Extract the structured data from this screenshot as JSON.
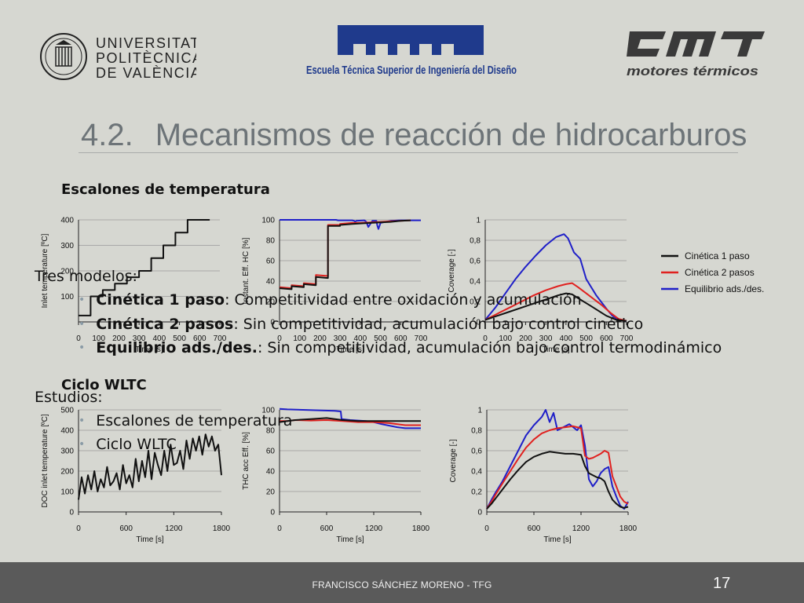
{
  "header": {
    "upv_lines": [
      "UNIVERSITAT",
      "POLITÈCNICA",
      "DE VALÈNCIA"
    ],
    "etsid_name": "Escuela Técnica Superior de Ingeniería del Diseño",
    "cmt_name": "motores térmicos"
  },
  "slide": {
    "title_number": "4.2.",
    "title_text": "Mecanismos de reacción de hidrocarburos",
    "section_1": "Escalones de temperatura",
    "section_2": "Ciclo WLTC"
  },
  "overlay": {
    "models_heading": "Tres modelos:",
    "bullets": [
      {
        "bold": "Cinética 1 paso",
        "rest": ": Competitividad entre oxidación y acumulación"
      },
      {
        "bold": "Cinética 2 pasos",
        "rest": ": Sin competitividad, acumulación bajo control cinético"
      },
      {
        "bold": "Equilibrio ads./des.",
        "rest": ":  Sin competitividad, acumulación bajo control termodinámico"
      }
    ],
    "studies_heading": "Estudios:",
    "studies": [
      "Escalones de temperatura",
      "Ciclo WLTC"
    ]
  },
  "legend": [
    "Cinética 1 paso",
    "Cinética 2 pasos",
    "Equilibrio ads./des."
  ],
  "colors": {
    "black": "#111111",
    "red": "#e0211f",
    "blue": "#1f1fc8",
    "dark_red": "#6e1010",
    "footer": "#5a5a5a",
    "background": "#d6d7d1"
  },
  "footer": {
    "text": "FRANCISCO SÁNCHEZ MORENO - TFG",
    "page": "17"
  },
  "chart_data": [
    {
      "type": "line",
      "id": "steps_inlet_temperature",
      "xlabel": "Time [s]",
      "ylabel": "Inlet temperature [ºC]",
      "xlim": [
        0,
        700
      ],
      "ylim": [
        0,
        400
      ],
      "xticks": [
        0,
        100,
        200,
        300,
        400,
        500,
        600,
        700
      ],
      "yticks": [
        100,
        200,
        300,
        400
      ],
      "series": [
        {
          "color": "#111111",
          "x": [
            0,
            60,
            60,
            120,
            120,
            180,
            180,
            240,
            240,
            300,
            300,
            360,
            360,
            420,
            420,
            480,
            480,
            540,
            540,
            600,
            600,
            650
          ],
          "y": [
            25,
            25,
            100,
            100,
            125,
            125,
            150,
            150,
            175,
            175,
            200,
            200,
            250,
            250,
            300,
            300,
            350,
            350,
            400,
            400,
            400,
            400
          ]
        }
      ]
    },
    {
      "type": "line",
      "id": "steps_instant_eff_hc",
      "xlabel": "Time [s]",
      "ylabel": "Instant. Eff. HC [%]",
      "xlim": [
        0,
        700
      ],
      "ylim": [
        0,
        100
      ],
      "xticks": [
        0,
        100,
        200,
        300,
        400,
        500,
        600,
        700
      ],
      "yticks": [
        0,
        20,
        40,
        60,
        80,
        100
      ],
      "series": [
        {
          "name": "Equilibrio ads./des.",
          "color": "#1f1fc8",
          "x": [
            0,
            280,
            290,
            300,
            360,
            370,
            375,
            380,
            420,
            430,
            440,
            450,
            460,
            480,
            485,
            490,
            500,
            550,
            600,
            700
          ],
          "y": [
            100,
            100,
            99.5,
            99.5,
            99.5,
            99,
            98,
            99,
            99.5,
            98,
            93,
            96,
            99,
            99,
            94,
            91,
            97,
            99,
            99.5,
            99.5
          ]
        },
        {
          "name": "Cinética 2 pasos",
          "color": "#e0211f",
          "x": [
            0,
            60,
            60,
            120,
            120,
            180,
            180,
            240,
            240,
            300,
            300,
            360,
            400,
            450,
            500,
            550,
            600,
            650
          ],
          "y": [
            34,
            33,
            36,
            35,
            38,
            37,
            46,
            45,
            95,
            95,
            96,
            97,
            97,
            97.5,
            98,
            98.5,
            99,
            99.5
          ]
        },
        {
          "name": "Cinética 1 paso",
          "color": "#111111",
          "x": [
            0,
            60,
            60,
            120,
            120,
            180,
            180,
            240,
            240,
            300,
            300,
            360,
            400,
            450,
            500,
            550,
            600,
            650
          ],
          "y": [
            33,
            32,
            35,
            34,
            37,
            36,
            44,
            43,
            94,
            94,
            95,
            96,
            96.5,
            97,
            97.5,
            98,
            99,
            99.5
          ]
        }
      ]
    },
    {
      "type": "line",
      "id": "steps_coverage",
      "xlabel": "Time [s]",
      "ylabel": "Coverage [-]",
      "xlim": [
        0,
        700
      ],
      "ylim": [
        0,
        1
      ],
      "xticks": [
        0,
        100,
        200,
        300,
        400,
        500,
        600,
        700
      ],
      "yticks": [
        0,
        0.2,
        0.4,
        0.6,
        0.8,
        1
      ],
      "series": [
        {
          "name": "Equilibrio ads./des.",
          "color": "#1f1fc8",
          "x": [
            0,
            50,
            100,
            150,
            200,
            250,
            300,
            350,
            390,
            410,
            440,
            470,
            500,
            550,
            600,
            630,
            660,
            700
          ],
          "y": [
            0.02,
            0.14,
            0.28,
            0.42,
            0.54,
            0.65,
            0.75,
            0.83,
            0.86,
            0.82,
            0.68,
            0.62,
            0.42,
            0.26,
            0.13,
            0.06,
            0.02,
            0.01
          ]
        },
        {
          "name": "Cinética 2 pasos",
          "color": "#e0211f",
          "x": [
            0,
            60,
            120,
            180,
            240,
            300,
            360,
            400,
            430,
            460,
            500,
            540,
            580,
            620,
            660,
            700
          ],
          "y": [
            0.02,
            0.08,
            0.14,
            0.2,
            0.26,
            0.31,
            0.35,
            0.37,
            0.38,
            0.34,
            0.28,
            0.22,
            0.16,
            0.09,
            0.03,
            0.01
          ]
        },
        {
          "name": "Cinética 1 paso",
          "color": "#111111",
          "x": [
            0,
            60,
            120,
            180,
            240,
            300,
            360,
            400,
            430,
            470,
            520,
            560,
            600,
            650,
            700
          ],
          "y": [
            0.02,
            0.06,
            0.1,
            0.14,
            0.18,
            0.22,
            0.26,
            0.28,
            0.27,
            0.22,
            0.16,
            0.11,
            0.06,
            0.02,
            0.01
          ]
        }
      ]
    },
    {
      "type": "line",
      "id": "wltc_inlet_temperature",
      "xlabel": "Time [s]",
      "ylabel": "DOC inlet temperature [ºC]",
      "xlim": [
        0,
        1800
      ],
      "ylim": [
        0,
        500
      ],
      "xticks": [
        0,
        600,
        1200,
        1800
      ],
      "yticks": [
        0,
        100,
        200,
        300,
        400,
        500
      ],
      "series": [
        {
          "color": "#111111",
          "x": [
            0,
            40,
            80,
            120,
            160,
            200,
            240,
            280,
            320,
            360,
            400,
            440,
            480,
            520,
            560,
            600,
            640,
            680,
            720,
            760,
            800,
            840,
            880,
            920,
            960,
            1000,
            1040,
            1080,
            1120,
            1160,
            1200,
            1240,
            1280,
            1320,
            1360,
            1400,
            1440,
            1480,
            1520,
            1560,
            1600,
            1640,
            1680,
            1720,
            1760,
            1800
          ],
          "y": [
            60,
            170,
            90,
            180,
            110,
            200,
            100,
            160,
            120,
            220,
            130,
            150,
            190,
            110,
            230,
            140,
            180,
            120,
            260,
            150,
            250,
            170,
            300,
            160,
            290,
            230,
            180,
            300,
            200,
            330,
            230,
            240,
            300,
            210,
            350,
            260,
            360,
            300,
            370,
            280,
            380,
            320,
            370,
            300,
            330,
            180
          ]
        }
      ]
    },
    {
      "type": "line",
      "id": "wltc_thc_acc_eff",
      "xlabel": "Time [s]",
      "ylabel": "THC acc Eff. [%]",
      "xlim": [
        0,
        1800
      ],
      "ylim": [
        0,
        100
      ],
      "xticks": [
        0,
        600,
        1200,
        1800
      ],
      "yticks": [
        0,
        20,
        40,
        60,
        80,
        100
      ],
      "series": [
        {
          "name": "Equilibrio ads./des.",
          "color": "#1f1fc8",
          "x": [
            0,
            100,
            300,
            500,
            700,
            780,
            790,
            900,
            1100,
            1200,
            1300,
            1500,
            1600,
            1700,
            1800
          ],
          "y": [
            101,
            100.5,
            100,
            99.5,
            99,
            98.5,
            91,
            90,
            89,
            88,
            86,
            83,
            82,
            82,
            82
          ]
        },
        {
          "name": "Cinética 2 pasos",
          "color": "#e0211f",
          "x": [
            0,
            100,
            200,
            400,
            600,
            800,
            1000,
            1200,
            1400,
            1500,
            1600,
            1700,
            1800
          ],
          "y": [
            89,
            89,
            90,
            89.5,
            90,
            89,
            88,
            88,
            87,
            86,
            85,
            85,
            85
          ]
        },
        {
          "name": "Cinética 1 paso",
          "color": "#111111",
          "x": [
            0,
            100,
            200,
            400,
            600,
            800,
            1000,
            1200,
            1400,
            1500,
            1600,
            1700,
            1800
          ],
          "y": [
            88,
            89,
            90,
            91,
            92,
            90,
            89,
            89,
            89,
            89,
            89,
            89,
            89
          ]
        }
      ]
    },
    {
      "type": "line",
      "id": "wltc_coverage",
      "xlabel": "Time [s]",
      "ylabel": "Coverage [-]",
      "xlim": [
        0,
        1800
      ],
      "ylim": [
        0,
        1
      ],
      "xticks": [
        0,
        600,
        1200,
        1800
      ],
      "yticks": [
        0,
        0.2,
        0.4,
        0.6,
        0.8,
        1
      ],
      "series": [
        {
          "name": "Equilibrio ads./des.",
          "color": "#1f1fc8",
          "x": [
            0,
            60,
            120,
            200,
            300,
            400,
            500,
            600,
            700,
            750,
            800,
            850,
            900,
            950,
            1000,
            1050,
            1100,
            1150,
            1200,
            1250,
            1300,
            1350,
            1400,
            1450,
            1500,
            1550,
            1600,
            1650,
            1700,
            1750,
            1800
          ],
          "y": [
            0.03,
            0.12,
            0.2,
            0.3,
            0.45,
            0.6,
            0.75,
            0.85,
            0.93,
            1.0,
            0.88,
            0.97,
            0.8,
            0.82,
            0.84,
            0.86,
            0.83,
            0.8,
            0.85,
            0.65,
            0.32,
            0.25,
            0.3,
            0.38,
            0.42,
            0.44,
            0.25,
            0.15,
            0.06,
            0.03,
            0.1
          ]
        },
        {
          "name": "Cinética 2 pasos",
          "color": "#e0211f",
          "x": [
            0,
            60,
            120,
            200,
            300,
            400,
            500,
            600,
            700,
            800,
            900,
            1000,
            1100,
            1150,
            1200,
            1250,
            1300,
            1350,
            1400,
            1450,
            1500,
            1550,
            1600,
            1650,
            1700,
            1750,
            1800
          ],
          "y": [
            0.03,
            0.1,
            0.18,
            0.28,
            0.4,
            0.52,
            0.63,
            0.71,
            0.77,
            0.8,
            0.82,
            0.83,
            0.84,
            0.83,
            0.82,
            0.55,
            0.52,
            0.53,
            0.55,
            0.57,
            0.6,
            0.58,
            0.35,
            0.25,
            0.15,
            0.1,
            0.08
          ]
        },
        {
          "name": "Cinética 1 paso",
          "color": "#111111",
          "x": [
            0,
            60,
            120,
            200,
            300,
            400,
            500,
            600,
            700,
            800,
            900,
            1000,
            1100,
            1200,
            1250,
            1300,
            1350,
            1400,
            1450,
            1500,
            1550,
            1600,
            1650,
            1700,
            1750,
            1800
          ],
          "y": [
            0.03,
            0.08,
            0.14,
            0.22,
            0.32,
            0.41,
            0.49,
            0.54,
            0.57,
            0.59,
            0.58,
            0.57,
            0.57,
            0.56,
            0.45,
            0.38,
            0.36,
            0.34,
            0.33,
            0.3,
            0.2,
            0.12,
            0.08,
            0.05,
            0.04,
            0.05
          ]
        }
      ]
    }
  ]
}
